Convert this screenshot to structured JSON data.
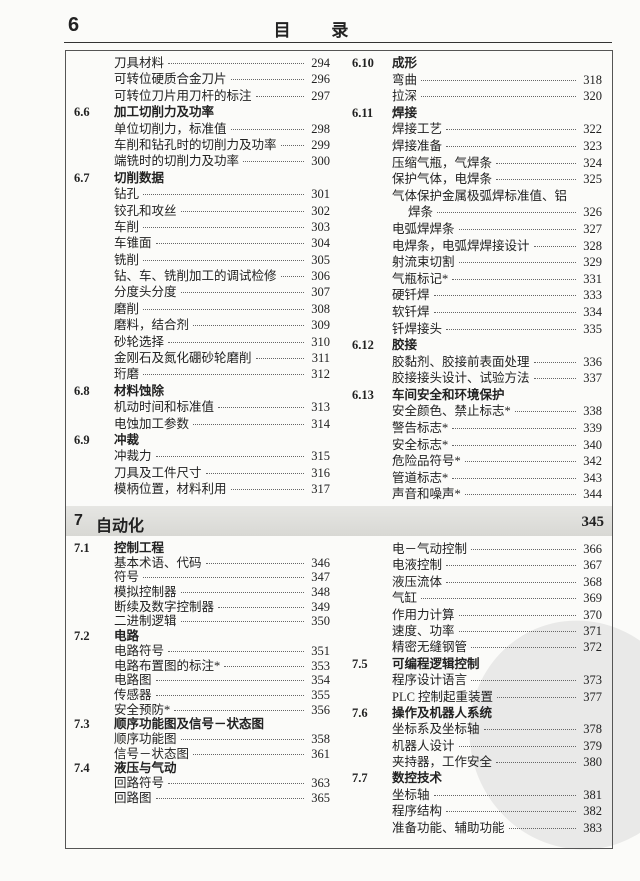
{
  "header": {
    "page_number": "6",
    "title": "目 录"
  },
  "top": {
    "left": [
      {
        "t": "item",
        "title": "刀具材料",
        "page": "294"
      },
      {
        "t": "item",
        "title": "可转位硬质合金刀片",
        "page": "296"
      },
      {
        "t": "item",
        "title": "可转位刀片用刀杆的标注",
        "page": "297"
      },
      {
        "t": "sec",
        "num": "6.6",
        "title": "加工切削力及功率"
      },
      {
        "t": "item",
        "title": "单位切削力，标准值",
        "page": "298"
      },
      {
        "t": "item",
        "title": "车削和钻孔时的切削力及功率",
        "page": "299"
      },
      {
        "t": "item",
        "title": "端铣时的切削力及功率",
        "page": "300"
      },
      {
        "t": "sec",
        "num": "6.7",
        "title": "切削数据"
      },
      {
        "t": "item",
        "title": "钻孔",
        "page": "301"
      },
      {
        "t": "item",
        "title": "铰孔和攻丝",
        "page": "302"
      },
      {
        "t": "item",
        "title": "车削",
        "page": "303"
      },
      {
        "t": "item",
        "title": "车锥面",
        "page": "304"
      },
      {
        "t": "item",
        "title": "铣削",
        "page": "305"
      },
      {
        "t": "item",
        "title": "钻、车、铣削加工的调试检修",
        "page": "306"
      },
      {
        "t": "item",
        "title": "分度头分度",
        "page": "307"
      },
      {
        "t": "item",
        "title": "磨削",
        "page": "308"
      },
      {
        "t": "item",
        "title": "磨料，结合剂",
        "page": "309"
      },
      {
        "t": "item",
        "title": "砂轮选择",
        "page": "310"
      },
      {
        "t": "item",
        "title": "金刚石及氮化硼砂轮磨削",
        "page": "311"
      },
      {
        "t": "item",
        "title": "珩磨",
        "page": "312"
      },
      {
        "t": "sec",
        "num": "6.8",
        "title": "材料蚀除"
      },
      {
        "t": "item",
        "title": "机动时间和标准值",
        "page": "313"
      },
      {
        "t": "item",
        "title": "电蚀加工参数",
        "page": "314"
      },
      {
        "t": "sec",
        "num": "6.9",
        "title": "冲裁"
      },
      {
        "t": "item",
        "title": "冲裁力",
        "page": "315"
      },
      {
        "t": "item",
        "title": "刀具及工件尺寸",
        "page": "316"
      },
      {
        "t": "item",
        "title": "模柄位置，材料利用",
        "page": "317"
      }
    ],
    "right": [
      {
        "t": "sec",
        "num": "6.10",
        "title": "成形"
      },
      {
        "t": "item",
        "title": "弯曲",
        "page": "318"
      },
      {
        "t": "item",
        "title": "拉深",
        "page": "320"
      },
      {
        "t": "sec",
        "num": "6.11",
        "title": "焊接"
      },
      {
        "t": "item",
        "title": "焊接工艺",
        "page": "322"
      },
      {
        "t": "item",
        "title": "焊接准备",
        "page": "323"
      },
      {
        "t": "item",
        "title": "压缩气瓶，气焊条",
        "page": "324"
      },
      {
        "t": "item",
        "title": "保护气体，电焊条",
        "page": "325"
      },
      {
        "t": "line",
        "title": "气体保护金属极弧焊标准值、铝"
      },
      {
        "t": "cont",
        "title": "焊条",
        "page": "326"
      },
      {
        "t": "item",
        "title": "电弧焊焊条",
        "page": "327"
      },
      {
        "t": "item",
        "title": "电焊条，电弧焊焊接设计",
        "page": "328"
      },
      {
        "t": "item",
        "title": "射流束切割",
        "page": "329"
      },
      {
        "t": "item",
        "title": "气瓶标记*",
        "page": "331"
      },
      {
        "t": "item",
        "title": "硬钎焊",
        "page": "333"
      },
      {
        "t": "item",
        "title": "软钎焊",
        "page": "334"
      },
      {
        "t": "item",
        "title": "钎焊接头",
        "page": "335"
      },
      {
        "t": "sec",
        "num": "6.12",
        "title": "胶接"
      },
      {
        "t": "item",
        "title": "胶黏剂、胶接前表面处理",
        "page": "336"
      },
      {
        "t": "item",
        "title": "胶接接头设计、试验方法",
        "page": "337"
      },
      {
        "t": "sec",
        "num": "6.13",
        "title": "车间安全和环境保护"
      },
      {
        "t": "item",
        "title": "安全颜色、禁止标志*",
        "page": "338"
      },
      {
        "t": "item",
        "title": "警告标志*",
        "page": "339"
      },
      {
        "t": "item",
        "title": "安全标志*",
        "page": "340"
      },
      {
        "t": "item",
        "title": "危险品符号*",
        "page": "342"
      },
      {
        "t": "item",
        "title": "管道标志*",
        "page": "343"
      },
      {
        "t": "item",
        "title": "声音和噪声*",
        "page": "344"
      }
    ]
  },
  "chapter": {
    "num": "7",
    "title": "自动化",
    "page": "345"
  },
  "bottom": {
    "left": [
      {
        "t": "sec",
        "num": "7.1",
        "title": "控制工程"
      },
      {
        "t": "item",
        "title": "基本术语、代码",
        "page": "346"
      },
      {
        "t": "item",
        "title": "符号",
        "page": "347"
      },
      {
        "t": "item",
        "title": "模拟控制器",
        "page": "348"
      },
      {
        "t": "item",
        "title": "断续及数字控制器",
        "page": "349"
      },
      {
        "t": "item",
        "title": "二进制逻辑",
        "page": "350"
      },
      {
        "t": "sec",
        "num": "7.2",
        "title": "电路"
      },
      {
        "t": "item",
        "title": "电路符号",
        "page": "351"
      },
      {
        "t": "item",
        "title": "电路布置图的标注*",
        "page": "353"
      },
      {
        "t": "item",
        "title": "电路图",
        "page": "354"
      },
      {
        "t": "item",
        "title": "传感器",
        "page": "355"
      },
      {
        "t": "item",
        "title": "安全预防*",
        "page": "356"
      },
      {
        "t": "sec",
        "num": "7.3",
        "title": "顺序功能图及信号－状态图"
      },
      {
        "t": "item",
        "title": "顺序功能图",
        "page": "358"
      },
      {
        "t": "item",
        "title": "信号－状态图",
        "page": "361"
      },
      {
        "t": "sec",
        "num": "7.4",
        "title": "液压与气动"
      },
      {
        "t": "item",
        "title": "回路符号",
        "page": "363"
      },
      {
        "t": "item",
        "title": "回路图",
        "page": "365"
      }
    ],
    "right": [
      {
        "t": "item",
        "title": "电－气动控制",
        "page": "366"
      },
      {
        "t": "item",
        "title": "电液控制",
        "page": "367"
      },
      {
        "t": "item",
        "title": "液压流体",
        "page": "368"
      },
      {
        "t": "item",
        "title": "气缸",
        "page": "369"
      },
      {
        "t": "item",
        "title": "作用力计算",
        "page": "370"
      },
      {
        "t": "item",
        "title": "速度、功率",
        "page": "371"
      },
      {
        "t": "item",
        "title": "精密无缝钢管",
        "page": "372"
      },
      {
        "t": "sec",
        "num": "7.5",
        "title": "可编程逻辑控制"
      },
      {
        "t": "item",
        "title": "程序设计语言",
        "page": "373"
      },
      {
        "t": "item",
        "title": "PLC 控制起重装置",
        "page": "377"
      },
      {
        "t": "sec",
        "num": "7.6",
        "title": "操作及机器人系统"
      },
      {
        "t": "item",
        "title": "坐标系及坐标轴",
        "page": "378"
      },
      {
        "t": "item",
        "title": "机器人设计",
        "page": "379"
      },
      {
        "t": "item",
        "title": "夹持器，工作安全",
        "page": "380"
      },
      {
        "t": "sec",
        "num": "7.7",
        "title": "数控技术"
      },
      {
        "t": "item",
        "title": "坐标轴",
        "page": "381"
      },
      {
        "t": "item",
        "title": "程序结构",
        "page": "382"
      },
      {
        "t": "item",
        "title": "准备功能、辅助功能",
        "page": "383"
      }
    ]
  }
}
